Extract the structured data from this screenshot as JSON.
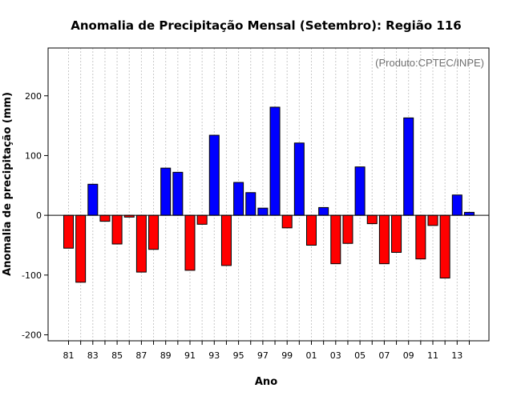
{
  "chart_data": {
    "type": "bar",
    "title": "Anomalia de Precipitação Mensal (Setembro): Região 116",
    "xlabel": "Ano",
    "ylabel": "Anomalia de precipitação (mm)",
    "annotation": "(Produto:CPTEC/INPE)",
    "ylim": [
      -210,
      280
    ],
    "yticks": [
      -200,
      -100,
      0,
      100,
      200
    ],
    "grid": true,
    "colors": {
      "positive": "#0000ff",
      "negative": "#ff0000",
      "grid": "#c8c8c8",
      "axis": "#000000"
    },
    "categories": [
      "1981",
      "1982",
      "1983",
      "1984",
      "1985",
      "1986",
      "1987",
      "1988",
      "1989",
      "1990",
      "1991",
      "1992",
      "1993",
      "1994",
      "1995",
      "1996",
      "1997",
      "1998",
      "1999",
      "2000",
      "2001",
      "2002",
      "2003",
      "2004",
      "2005",
      "2006",
      "2007",
      "2008",
      "2009",
      "2010",
      "2011",
      "2012",
      "2013",
      "2014"
    ],
    "tick_labels": [
      "81",
      "",
      "83",
      "",
      "85",
      "",
      "87",
      "",
      "89",
      "",
      "91",
      "",
      "93",
      "",
      "95",
      "",
      "97",
      "",
      "99",
      "",
      "01",
      "",
      "03",
      "",
      "05",
      "",
      "07",
      "",
      "09",
      "",
      "11",
      "",
      "13",
      ""
    ],
    "values": [
      -55,
      -112,
      52,
      -10,
      -48,
      -3,
      -95,
      -57,
      79,
      72,
      -92,
      -15,
      134,
      -84,
      55,
      38,
      12,
      181,
      -21,
      121,
      -50,
      13,
      -81,
      -47,
      81,
      -14,
      -81,
      -62,
      163,
      -73,
      -17,
      -105,
      34,
      5
    ]
  }
}
